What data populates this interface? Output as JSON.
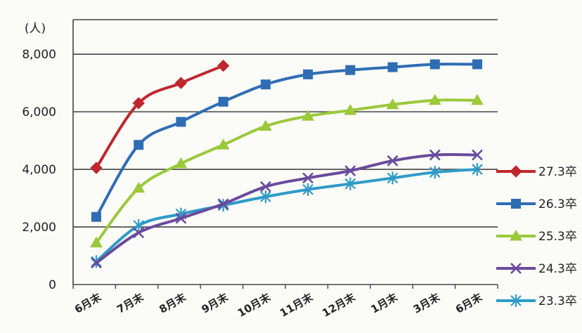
{
  "chart_data": {
    "type": "line",
    "unit_label": "(人)",
    "categories": [
      "6月末",
      "7月末",
      "8月末",
      "9月末",
      "10月末",
      "11月末",
      "12月末",
      "1月末",
      "3月末",
      "6月末"
    ],
    "ylim": [
      0,
      9200
    ],
    "yticks": [
      "0",
      "2,000",
      "4,000",
      "6,000",
      "8,000"
    ],
    "ytick_values": [
      0,
      2000,
      4000,
      6000,
      8000
    ],
    "grid": true,
    "legend_position": "right",
    "series": [
      {
        "name": "27.3卒",
        "color": "#c0272d",
        "marker": "diamond",
        "values": [
          4050,
          6300,
          7000,
          7600,
          null,
          null,
          null,
          null,
          null,
          null
        ]
      },
      {
        "name": "26.3卒",
        "color": "#2e6db4",
        "marker": "square",
        "values": [
          2350,
          4850,
          5650,
          6350,
          6950,
          7300,
          7450,
          7550,
          7650,
          7650
        ]
      },
      {
        "name": "25.3卒",
        "color": "#9ac93a",
        "marker": "triangle",
        "values": [
          1450,
          3350,
          4200,
          4850,
          5500,
          5850,
          6050,
          6250,
          6400,
          6400
        ]
      },
      {
        "name": "24.3卒",
        "color": "#6a4a9c",
        "marker": "x",
        "values": [
          750,
          1800,
          2300,
          2800,
          3400,
          3700,
          3950,
          4300,
          4500,
          4500
        ]
      },
      {
        "name": "23.3卒",
        "color": "#2e9bc8",
        "marker": "asterisk",
        "values": [
          800,
          2050,
          2450,
          2750,
          3050,
          3300,
          3500,
          3700,
          3900,
          4000
        ]
      }
    ]
  }
}
